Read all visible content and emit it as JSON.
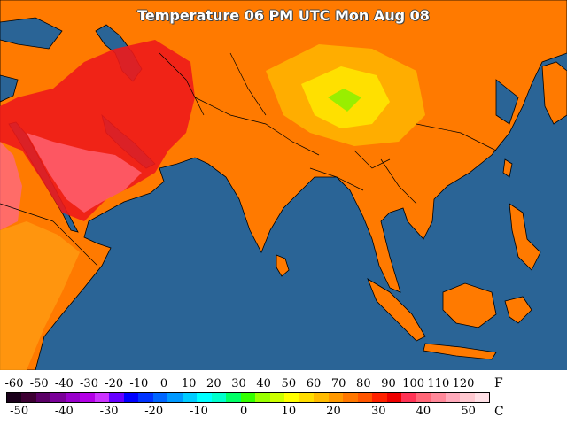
{
  "map": {
    "title": "Temperature 06 PM UTC Mon Aug 08",
    "ocean_color": "#2a6496",
    "border_color": "#000000"
  },
  "legend": {
    "fahrenheit_unit": "F",
    "celsius_unit": "C",
    "fahrenheit_ticks": [
      "-60",
      "-50",
      "-40",
      "-30",
      "-20",
      "-10",
      "0",
      "10",
      "20",
      "30",
      "40",
      "50",
      "60",
      "70",
      "80",
      "90",
      "100",
      "110",
      "120"
    ],
    "celsius_ticks": [
      "-50",
      "-40",
      "-30",
      "-20",
      "-10",
      "0",
      "10",
      "20",
      "30",
      "40",
      "50"
    ],
    "colors": [
      "#1a001a",
      "#3d0033",
      "#5a0066",
      "#7a0099",
      "#9900cc",
      "#b300e6",
      "#cc33ff",
      "#6600ff",
      "#0000ff",
      "#0033ff",
      "#0066ff",
      "#0099ff",
      "#00ccff",
      "#00ffff",
      "#00ffcc",
      "#00ff66",
      "#33ff00",
      "#99ff00",
      "#ccff00",
      "#ffff00",
      "#ffdd00",
      "#ffbb00",
      "#ff9900",
      "#ff7700",
      "#ff5500",
      "#ff2200",
      "#ee0000",
      "#ff3355",
      "#ff6677",
      "#ff8899",
      "#ffaabb",
      "#ffc8d0",
      "#ffe0e6"
    ]
  }
}
